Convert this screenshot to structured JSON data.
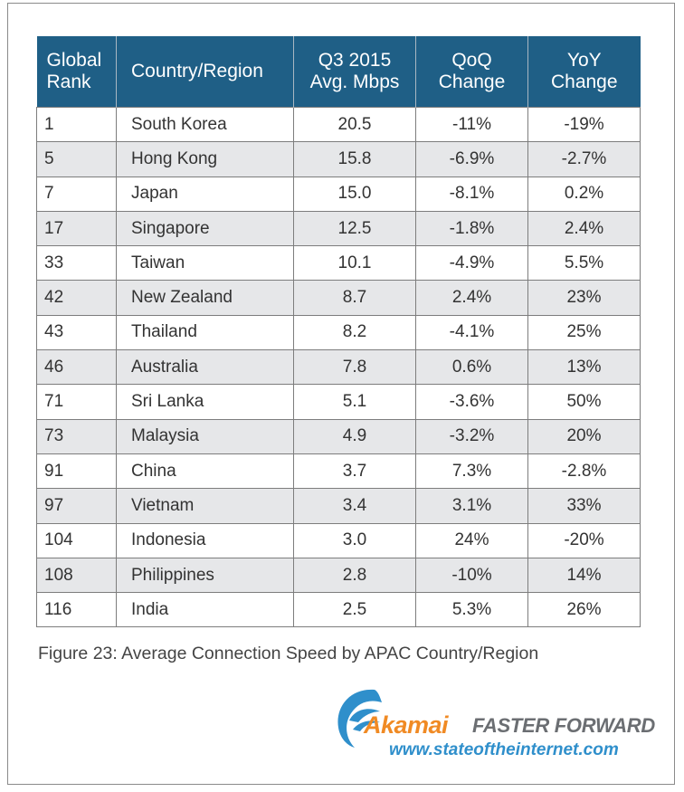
{
  "chart_data": {
    "type": "table",
    "columns": [
      {
        "line1": "Global",
        "line2": "Rank"
      },
      {
        "line1": "Country/Region",
        "line2": ""
      },
      {
        "line1": "Q3 2015",
        "line2": "Avg. Mbps"
      },
      {
        "line1": "QoQ",
        "line2": "Change"
      },
      {
        "line1": "YoY",
        "line2": "Change"
      }
    ],
    "rows": [
      {
        "rank": "1",
        "country": "South Korea",
        "avg_mbps": "20.5",
        "qoq": "-11%",
        "yoy": "-19%"
      },
      {
        "rank": "5",
        "country": "Hong Kong",
        "avg_mbps": "15.8",
        "qoq": "-6.9%",
        "yoy": "-2.7%"
      },
      {
        "rank": "7",
        "country": "Japan",
        "avg_mbps": "15.0",
        "qoq": "-8.1%",
        "yoy": "0.2%"
      },
      {
        "rank": "17",
        "country": "Singapore",
        "avg_mbps": "12.5",
        "qoq": "-1.8%",
        "yoy": "2.4%"
      },
      {
        "rank": "33",
        "country": "Taiwan",
        "avg_mbps": "10.1",
        "qoq": "-4.9%",
        "yoy": "5.5%"
      },
      {
        "rank": "42",
        "country": "New Zealand",
        "avg_mbps": "8.7",
        "qoq": "2.4%",
        "yoy": "23%"
      },
      {
        "rank": "43",
        "country": "Thailand",
        "avg_mbps": "8.2",
        "qoq": "-4.1%",
        "yoy": "25%"
      },
      {
        "rank": "46",
        "country": "Australia",
        "avg_mbps": "7.8",
        "qoq": "0.6%",
        "yoy": "13%"
      },
      {
        "rank": "71",
        "country": "Sri Lanka",
        "avg_mbps": "5.1",
        "qoq": "-3.6%",
        "yoy": "50%"
      },
      {
        "rank": "73",
        "country": "Malaysia",
        "avg_mbps": "4.9",
        "qoq": "-3.2%",
        "yoy": "20%"
      },
      {
        "rank": "91",
        "country": "China",
        "avg_mbps": "3.7",
        "qoq": "7.3%",
        "yoy": "-2.8%"
      },
      {
        "rank": "97",
        "country": "Vietnam",
        "avg_mbps": "3.4",
        "qoq": "3.1%",
        "yoy": "33%"
      },
      {
        "rank": "104",
        "country": "Indonesia",
        "avg_mbps": "3.0",
        "qoq": "24%",
        "yoy": "-20%"
      },
      {
        "rank": "108",
        "country": "Philippines",
        "avg_mbps": "2.8",
        "qoq": "-10%",
        "yoy": "14%"
      },
      {
        "rank": "116",
        "country": "India",
        "avg_mbps": "2.5",
        "qoq": "5.3%",
        "yoy": "26%"
      }
    ],
    "caption": "Figure 23: Average Connection Speed by APAC Country/Region"
  },
  "branding": {
    "logo_icon": "akamai-wave-icon",
    "brand": "Akamai",
    "tagline": "FASTER FORWARD",
    "url": "www.stateoftheinternet.com"
  },
  "colors": {
    "header_bg": "#1f5f86",
    "alt_row_bg": "#e6e7e9",
    "brand_orange": "#f08a24",
    "brand_blue": "#2f8fcb"
  }
}
